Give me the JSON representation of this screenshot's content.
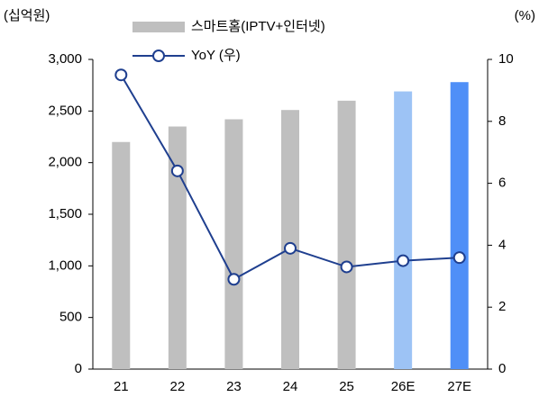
{
  "chart_data": {
    "type": "combo",
    "ylabel": "(십억원)",
    "y2label": "(%)",
    "categories": [
      "21",
      "22",
      "23",
      "24",
      "25",
      "26E",
      "27E"
    ],
    "series": [
      {
        "name": "스마트홈(IPTV+인터넷)",
        "type": "bar",
        "color": "#bfbfbf",
        "colors": [
          "#bfbfbf",
          "#bfbfbf",
          "#bfbfbf",
          "#bfbfbf",
          "#bfbfbf",
          "#9dc3f5",
          "#4f8ff7"
        ],
        "values": [
          2200,
          2350,
          2420,
          2510,
          2600,
          2690,
          2780
        ]
      },
      {
        "name": "YoY (우)",
        "type": "line",
        "axis": "y2",
        "color": "#1f3f8f",
        "values": [
          9.5,
          6.4,
          2.9,
          3.9,
          3.3,
          3.5,
          3.6
        ]
      }
    ],
    "ylim": [
      0,
      3000
    ],
    "yticks": [
      0,
      500,
      {
        "value": 1000,
        "label": "1,000"
      },
      {
        "value": 1500,
        "label": "1,500"
      },
      {
        "value": 2000,
        "label": "2,000"
      },
      {
        "value": 2500,
        "label": "2,500"
      },
      {
        "value": 3000,
        "label": "3,000"
      }
    ],
    "y2lim": [
      0,
      10
    ],
    "y2ticks": [
      0,
      2,
      4,
      6,
      8,
      10
    ]
  }
}
